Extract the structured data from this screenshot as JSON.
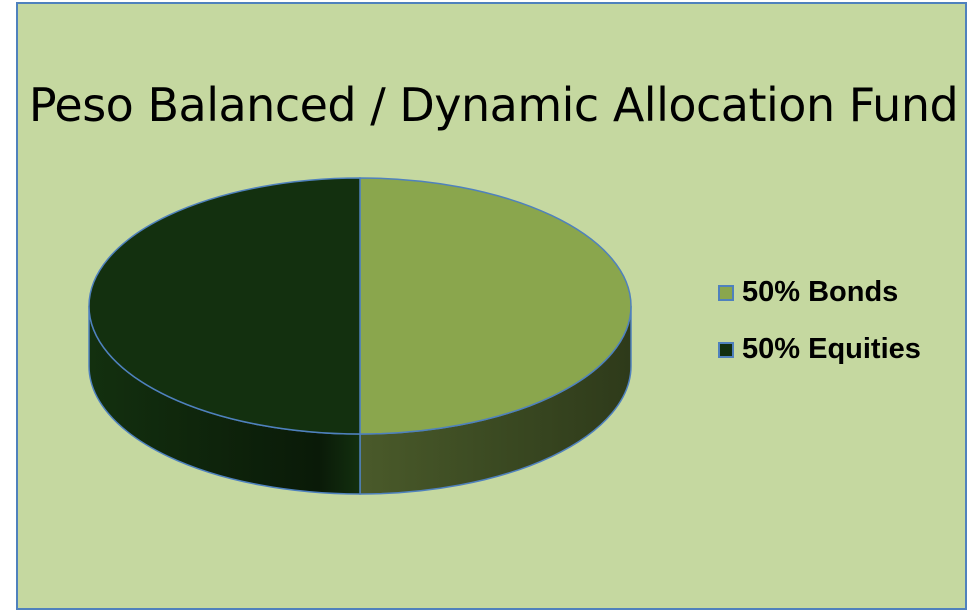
{
  "chart_data": {
    "type": "pie",
    "title": "Peso Balanced / Dynamic Allocation Fund",
    "slices": [
      {
        "label": "50% Bonds",
        "value": 50,
        "color": "#8aa64d",
        "side_color": "#3a4a1f"
      },
      {
        "label": "50% Equities",
        "value": 50,
        "color": "#13300f",
        "side_color": "#0c1e09"
      }
    ],
    "legend_position": "right",
    "style": "3d"
  }
}
